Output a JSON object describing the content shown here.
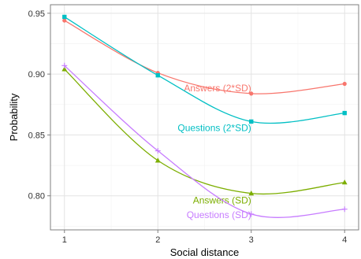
{
  "chart_data": {
    "type": "line",
    "title": "",
    "xlabel": "Social distance",
    "ylabel": "Probability",
    "x": [
      1,
      2,
      3,
      4
    ],
    "xlim": [
      0.85,
      4.15
    ],
    "ylim": [
      0.772,
      0.957
    ],
    "xticks": [
      1,
      2,
      3,
      4
    ],
    "yticks": [
      0.8,
      0.85,
      0.9,
      0.95
    ],
    "ytick_labels": [
      "0.80",
      "0.85",
      "0.90",
      "0.95"
    ],
    "grid": true,
    "legend": "inline labels",
    "series": [
      {
        "name": "Answers (2*SD)",
        "values": [
          0.944,
          0.901,
          0.884,
          0.892
        ],
        "color": "#F8766D",
        "marker": "circle"
      },
      {
        "name": "Questions (2*SD)",
        "values": [
          0.947,
          0.899,
          0.861,
          0.868
        ],
        "color": "#00BFC4",
        "marker": "square"
      },
      {
        "name": "Answers (SD)",
        "values": [
          0.904,
          0.829,
          0.802,
          0.811
        ],
        "color": "#7CAE00",
        "marker": "triangle"
      },
      {
        "name": "Questions (SD)",
        "values": [
          0.907,
          0.837,
          0.785,
          0.789
        ],
        "color": "#C77CFF",
        "marker": "plus"
      }
    ]
  }
}
